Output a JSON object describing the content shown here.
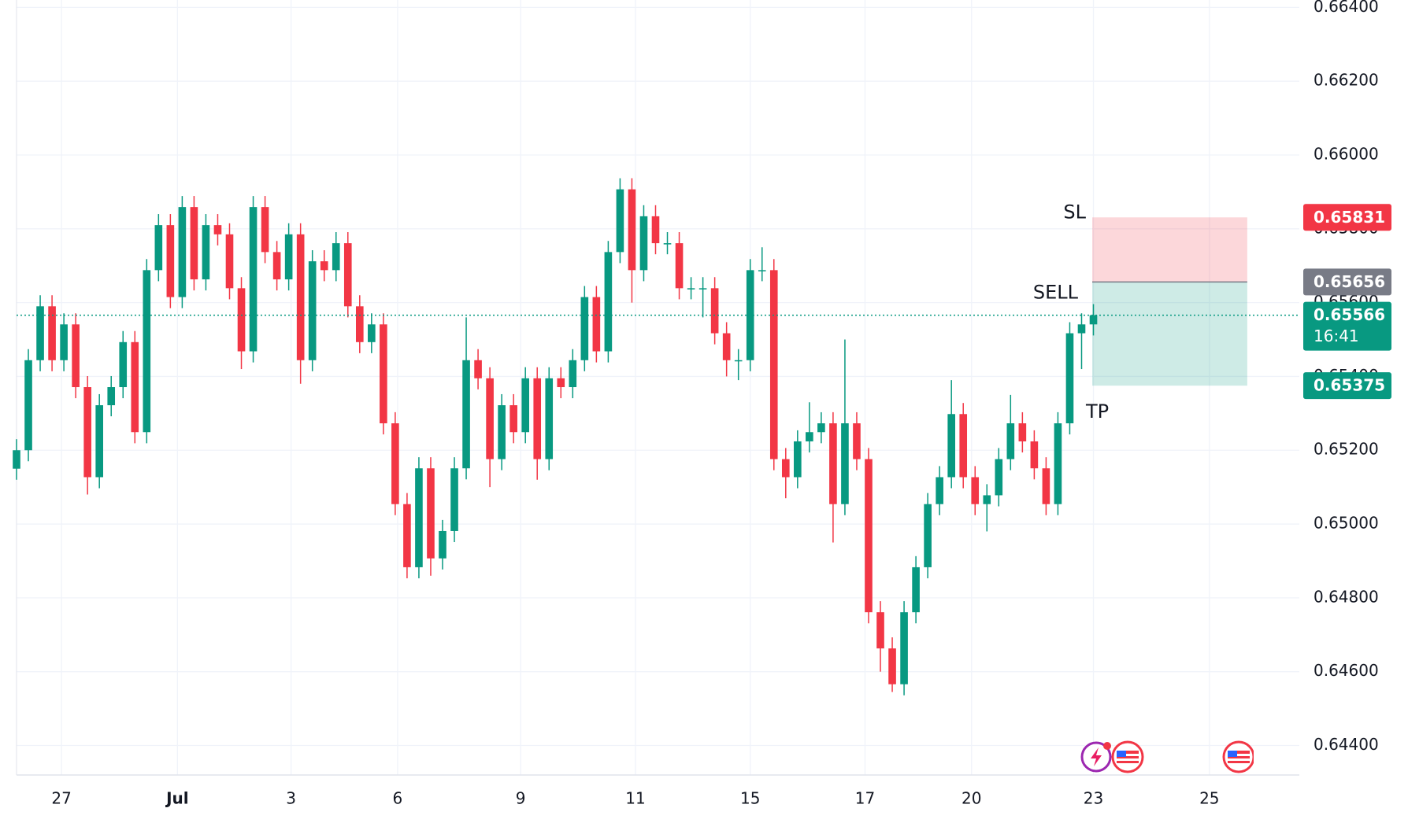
{
  "chart_data": {
    "type": "candlestick",
    "up_color": "#089981",
    "down_color": "#f23645",
    "grid": true,
    "xlim": [
      0,
      108.4
    ],
    "xticks": [
      {
        "value": 3.8,
        "label": "27"
      },
      {
        "value": 13.6,
        "label": "Jul"
      },
      {
        "value": 23.2,
        "label": "3"
      },
      {
        "value": 32.2,
        "label": "6"
      },
      {
        "value": 42.6,
        "label": "9"
      },
      {
        "value": 52.3,
        "label": "11"
      },
      {
        "value": 62,
        "label": "15"
      },
      {
        "value": 71.7,
        "label": "17"
      },
      {
        "value": 80.7,
        "label": "20"
      },
      {
        "value": 91,
        "label": "23"
      },
      {
        "value": 100.8,
        "label": "25"
      }
    ],
    "ylim": [
      0.6432,
      0.6642
    ],
    "yticks": [
      {
        "value": 0.644,
        "label": "0.64400"
      },
      {
        "value": 0.646,
        "label": "0.64600"
      },
      {
        "value": 0.648,
        "label": "0.64800"
      },
      {
        "value": 0.65,
        "label": "0.65000"
      },
      {
        "value": 0.652,
        "label": "0.65200"
      },
      {
        "value": 0.654,
        "label": "0.65400"
      },
      {
        "value": 0.656,
        "label": "0.65600"
      },
      {
        "value": 0.658,
        "label": "0.65800"
      },
      {
        "value": 0.66,
        "label": "0.66000"
      },
      {
        "value": 0.662,
        "label": "0.66200"
      },
      {
        "value": 0.664,
        "label": "0.66400"
      }
    ],
    "open": [
      0.6515,
      0.652,
      0.65444,
      0.6559,
      0.65444,
      0.65541,
      0.65371,
      0.65127,
      0.65322,
      0.65371,
      0.65493,
      0.65249,
      0.65688,
      0.6581,
      0.65615,
      0.65859,
      0.65663,
      0.6581,
      0.65785,
      0.65639,
      0.65468,
      0.65859,
      0.65737,
      0.65663,
      0.65785,
      0.65444,
      0.65712,
      0.65688,
      0.65761,
      0.6559,
      0.65493,
      0.65541,
      0.65273,
      0.65054,
      0.64883,
      0.65151,
      0.64907,
      0.64981,
      0.65151,
      0.65444,
      0.65395,
      0.65176,
      0.65322,
      0.65249,
      0.65395,
      0.65176,
      0.65395,
      0.65371,
      0.65444,
      0.65615,
      0.65468,
      0.65737,
      0.65907,
      0.65688,
      0.65834,
      0.65761,
      0.65761,
      0.65639,
      0.65639,
      0.65639,
      0.65517,
      0.65444,
      0.65444,
      0.65688,
      0.65688,
      0.65176,
      0.65127,
      0.65224,
      0.65249,
      0.65273,
      0.65054,
      0.65273,
      0.65176,
      0.64761,
      0.64663,
      0.64566,
      0.64761,
      0.64883,
      0.65054,
      0.65127,
      0.65298,
      0.65127,
      0.65054,
      0.65078,
      0.65176,
      0.65273,
      0.65224,
      0.65151,
      0.65054,
      0.65273,
      0.65517,
      0.65541
    ],
    "high": [
      0.6523,
      0.65474,
      0.6562,
      0.6562,
      0.65571,
      0.65571,
      0.65401,
      0.65352,
      0.65401,
      0.65523,
      0.65523,
      0.65718,
      0.6584,
      0.6584,
      0.65889,
      0.65889,
      0.6584,
      0.6584,
      0.65815,
      0.65669,
      0.65889,
      0.65889,
      0.65767,
      0.65815,
      0.65815,
      0.65742,
      0.65742,
      0.65791,
      0.65791,
      0.6562,
      0.65571,
      0.65571,
      0.65303,
      0.65084,
      0.65181,
      0.65181,
      0.65011,
      0.65181,
      0.6556,
      0.65474,
      0.65425,
      0.65352,
      0.65352,
      0.65425,
      0.65425,
      0.65425,
      0.65425,
      0.65474,
      0.65645,
      0.65645,
      0.65767,
      0.65937,
      0.65937,
      0.65864,
      0.65864,
      0.65791,
      0.65791,
      0.65669,
      0.65669,
      0.65669,
      0.65547,
      0.65474,
      0.65718,
      0.6575,
      0.65718,
      0.65206,
      0.65254,
      0.6533,
      0.65303,
      0.65303,
      0.655,
      0.65303,
      0.65206,
      0.64791,
      0.64693,
      0.64791,
      0.64913,
      0.65084,
      0.65157,
      0.6539,
      0.65328,
      0.65157,
      0.65108,
      0.65206,
      0.6535,
      0.65303,
      0.65254,
      0.65181,
      0.65303,
      0.65547,
      0.65571,
      0.65596
    ],
    "low": [
      0.6512,
      0.6517,
      0.65414,
      0.65414,
      0.65414,
      0.65341,
      0.6508,
      0.65097,
      0.65292,
      0.65341,
      0.65219,
      0.65219,
      0.65658,
      0.65585,
      0.65585,
      0.65633,
      0.65633,
      0.65755,
      0.65609,
      0.6542,
      0.65438,
      0.65707,
      0.65633,
      0.65633,
      0.6538,
      0.65414,
      0.65658,
      0.65658,
      0.6556,
      0.65463,
      0.65463,
      0.65243,
      0.65024,
      0.64853,
      0.64853,
      0.6486,
      0.64877,
      0.64951,
      0.65121,
      0.65365,
      0.651,
      0.65146,
      0.65219,
      0.65219,
      0.6512,
      0.65146,
      0.65341,
      0.65341,
      0.65414,
      0.65438,
      0.65438,
      0.65707,
      0.656,
      0.65658,
      0.65731,
      0.65731,
      0.65609,
      0.65609,
      0.6556,
      0.65487,
      0.654,
      0.6539,
      0.65414,
      0.65658,
      0.65146,
      0.6507,
      0.65097,
      0.65194,
      0.65219,
      0.6495,
      0.65024,
      0.65146,
      0.64731,
      0.646,
      0.64545,
      0.64536,
      0.64731,
      0.64853,
      0.65024,
      0.65097,
      0.65097,
      0.65024,
      0.6498,
      0.65048,
      0.65146,
      0.65194,
      0.65121,
      0.65024,
      0.65024,
      0.65243,
      0.6542,
      0.65511
    ],
    "close": [
      0.652,
      0.65444,
      0.6559,
      0.65444,
      0.65541,
      0.65371,
      0.65127,
      0.65322,
      0.65371,
      0.65493,
      0.65249,
      0.65688,
      0.6581,
      0.65615,
      0.65859,
      0.65663,
      0.6581,
      0.65785,
      0.65639,
      0.65468,
      0.65859,
      0.65737,
      0.65663,
      0.65785,
      0.65444,
      0.65712,
      0.65688,
      0.65761,
      0.6559,
      0.65493,
      0.65541,
      0.65273,
      0.65054,
      0.64883,
      0.65151,
      0.64907,
      0.64981,
      0.65151,
      0.65444,
      0.65395,
      0.65176,
      0.65322,
      0.65249,
      0.65395,
      0.65176,
      0.65395,
      0.65371,
      0.65444,
      0.65615,
      0.65468,
      0.65737,
      0.65907,
      0.65688,
      0.65834,
      0.65761,
      0.65761,
      0.65639,
      0.65639,
      0.65639,
      0.65517,
      0.65444,
      0.65444,
      0.65688,
      0.65688,
      0.65176,
      0.65127,
      0.65224,
      0.65249,
      0.65273,
      0.65054,
      0.65273,
      0.65176,
      0.64761,
      0.64663,
      0.64566,
      0.64761,
      0.64883,
      0.65054,
      0.65127,
      0.65298,
      0.65127,
      0.65054,
      0.65078,
      0.65176,
      0.65273,
      0.65224,
      0.65151,
      0.65054,
      0.65273,
      0.65517,
      0.65541,
      0.65566
    ],
    "current_price": 0.65566,
    "countdown": "16:41",
    "position": {
      "start": 90.9,
      "end": 104,
      "stop": 0.65831,
      "entry": 0.65656,
      "target": 0.65375,
      "stop_label": "SL",
      "entry_label": "SELL",
      "target_label": "TP"
    }
  }
}
